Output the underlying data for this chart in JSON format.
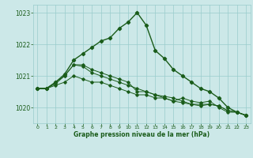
{
  "title": "Graphe pression niveau de la mer (hPa)",
  "xlabel": "Graphe pression niveau de la mer (hPa)",
  "ylim": [
    1019.5,
    1023.25
  ],
  "xlim": [
    -0.5,
    23.5
  ],
  "yticks": [
    1020,
    1021,
    1022,
    1023
  ],
  "xticks": [
    0,
    1,
    2,
    3,
    4,
    5,
    6,
    7,
    8,
    9,
    10,
    11,
    12,
    13,
    14,
    15,
    16,
    17,
    18,
    19,
    20,
    21,
    22,
    23
  ],
  "bg_color": "#cce8e8",
  "grid_color": "#99cccc",
  "line_color": "#1a5c1a",
  "series": [
    [
      1020.6,
      1020.6,
      1020.7,
      1020.8,
      1021.0,
      1020.9,
      1020.8,
      1020.8,
      1020.7,
      1020.6,
      1020.5,
      1020.4,
      1020.4,
      1020.3,
      1020.3,
      1020.2,
      1020.3,
      1020.2,
      1020.15,
      1020.2,
      1020.0,
      1019.85,
      1019.85,
      1019.75
    ],
    [
      1020.6,
      1020.6,
      1020.75,
      1021.0,
      1021.35,
      1021.3,
      1021.1,
      1021.0,
      1020.9,
      1020.8,
      1020.7,
      1020.6,
      1020.5,
      1020.4,
      1020.3,
      1020.2,
      1020.15,
      1020.1,
      1020.05,
      1020.1,
      1020.05,
      1019.9,
      1019.85,
      1019.75
    ],
    [
      1020.6,
      1020.6,
      1020.8,
      1021.0,
      1021.35,
      1021.35,
      1021.2,
      1021.1,
      1021.0,
      1020.9,
      1020.8,
      1020.5,
      1020.5,
      1020.4,
      1020.35,
      1020.3,
      1020.2,
      1020.1,
      1020.1,
      1020.1,
      1020.05,
      1019.9,
      1019.85,
      1019.75
    ],
    [
      1020.6,
      1020.6,
      1020.8,
      1021.05,
      1021.5,
      1021.7,
      1021.9,
      1022.1,
      1022.2,
      1022.5,
      1022.7,
      1023.0,
      1022.6,
      1021.8,
      1021.55,
      1021.2,
      1021.0,
      1020.8,
      1020.6,
      1020.5,
      1020.3,
      1020.0,
      1019.85,
      1019.75
    ]
  ]
}
